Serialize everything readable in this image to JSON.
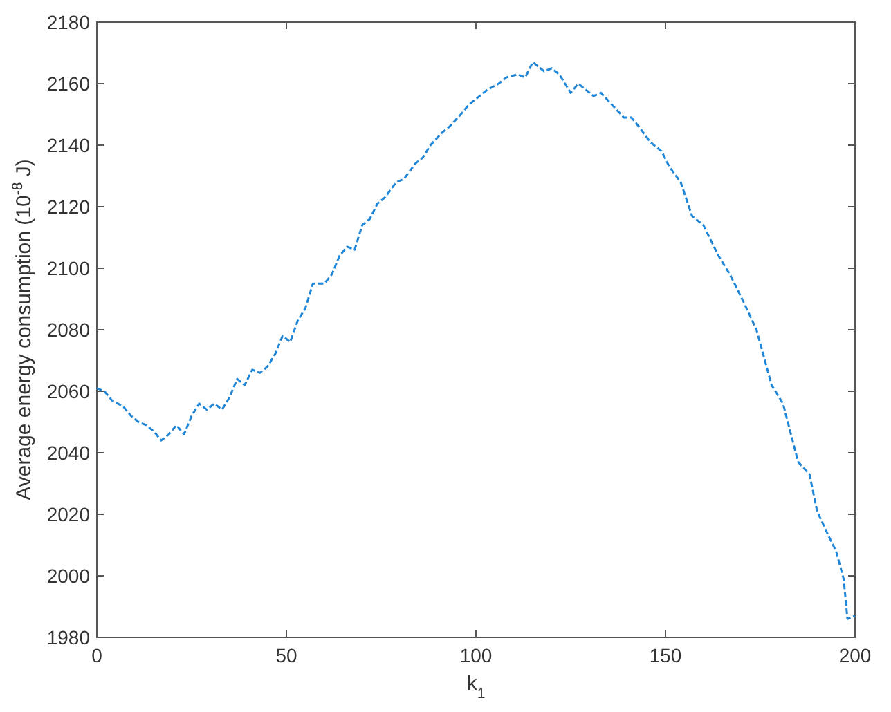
{
  "chart_data": {
    "type": "line",
    "xlabel": "k$_{1}$",
    "ylabel": "Average energy  consumption (10$^{-8}$ J)",
    "xlim": [
      0,
      200
    ],
    "ylim": [
      1980,
      2180
    ],
    "xticks": [
      0,
      50,
      100,
      150,
      200
    ],
    "yticks": [
      1980,
      2000,
      2020,
      2040,
      2060,
      2080,
      2100,
      2120,
      2140,
      2160,
      2180
    ],
    "grid": false,
    "marker": "none",
    "line_style": "dashed",
    "series": [
      {
        "color": "#1f86d8",
        "x": [
          0,
          2,
          4,
          7,
          9,
          11,
          13,
          15,
          17,
          19,
          21,
          23,
          25,
          27,
          29,
          31,
          33,
          35,
          37,
          39,
          41,
          43,
          45,
          47,
          49,
          51,
          53,
          55,
          57,
          60,
          62,
          64,
          66,
          68,
          70,
          72,
          74,
          76,
          79,
          81,
          84,
          86,
          88,
          91,
          93,
          96,
          98,
          100,
          103,
          106,
          108,
          111,
          113,
          115,
          118,
          120,
          122,
          125,
          127,
          129,
          131,
          133,
          136,
          139,
          141,
          143,
          146,
          149,
          151,
          154,
          157,
          160,
          164,
          167,
          171,
          174,
          178,
          181,
          185,
          188,
          190,
          193,
          195,
          197,
          198,
          200
        ],
        "values": [
          2061,
          2060,
          2057,
          2055,
          2052,
          2050,
          2049,
          2047,
          2044,
          2046,
          2049,
          2046,
          2052,
          2056,
          2054,
          2056,
          2054,
          2058,
          2064,
          2062,
          2067,
          2066,
          2068,
          2072,
          2078,
          2076,
          2083,
          2087,
          2095,
          2095,
          2098,
          2104,
          2107,
          2106,
          2114,
          2116,
          2121,
          2123,
          2128,
          2129,
          2134,
          2136,
          2140,
          2144,
          2146,
          2150,
          2153,
          2155,
          2158,
          2160,
          2162,
          2163,
          2162,
          2167,
          2164,
          2165,
          2163,
          2157,
          2160,
          2158,
          2156,
          2157,
          2153,
          2149,
          2149,
          2146,
          2141,
          2138,
          2133,
          2128,
          2117,
          2114,
          2104,
          2098,
          2088,
          2080,
          2062,
          2056,
          2037,
          2033,
          2021,
          2013,
          2008,
          1999,
          1986,
          1987
        ]
      }
    ]
  }
}
